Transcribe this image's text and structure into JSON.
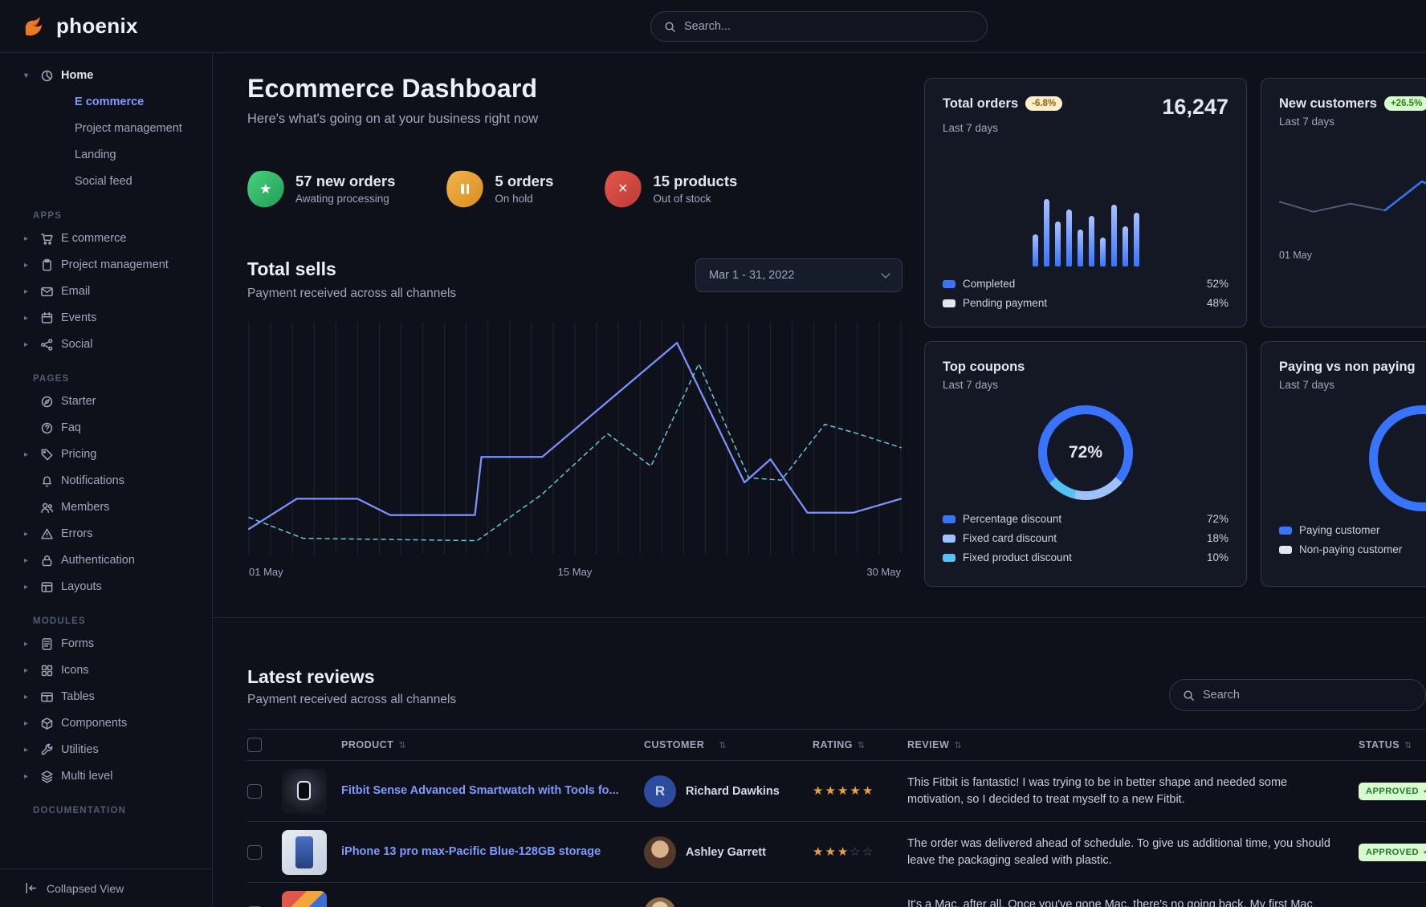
{
  "brand": {
    "name": "phoenix"
  },
  "icons": {
    "caret_down": "▾",
    "caret_right": "▸",
    "sort": "⇅",
    "star": "★",
    "star_filled": "★",
    "star_empty": "☆",
    "check": "✓",
    "close": "×"
  },
  "navbar": {
    "search_placeholder": "Search..."
  },
  "sidebar": {
    "home": {
      "label": "Home",
      "items": [
        {
          "label": "E commerce",
          "active": true
        },
        {
          "label": "Project management"
        },
        {
          "label": "Landing"
        },
        {
          "label": "Social feed"
        }
      ]
    },
    "sections": [
      {
        "title": "APPS",
        "items": [
          {
            "label": "E commerce"
          },
          {
            "label": "Project management"
          },
          {
            "label": "Email"
          },
          {
            "label": "Events"
          },
          {
            "label": "Social"
          }
        ]
      },
      {
        "title": "PAGES",
        "items": [
          {
            "label": "Starter"
          },
          {
            "label": "Faq"
          },
          {
            "label": "Pricing"
          },
          {
            "label": "Notifications"
          },
          {
            "label": "Members"
          },
          {
            "label": "Errors"
          },
          {
            "label": "Authentication"
          },
          {
            "label": "Layouts"
          }
        ]
      },
      {
        "title": "MODULES",
        "items": [
          {
            "label": "Forms"
          },
          {
            "label": "Icons"
          },
          {
            "label": "Tables"
          },
          {
            "label": "Components"
          },
          {
            "label": "Utilities"
          },
          {
            "label": "Multi level"
          }
        ]
      },
      {
        "title": "DOCUMENTATION",
        "items": []
      }
    ],
    "footer": {
      "label": "Collapsed View"
    }
  },
  "header": {
    "title": "Ecommerce Dashboard",
    "subtitle": "Here's what's going on at your business right now"
  },
  "stats": [
    {
      "value": "57 new orders",
      "caption": "Awating processing"
    },
    {
      "value": "5 orders",
      "caption": "On hold"
    },
    {
      "value": "15 products",
      "caption": "Out of stock"
    }
  ],
  "total_sells": {
    "title": "Total sells",
    "subtitle": "Payment received across all channels",
    "date_range": "Mar 1 - 31, 2022"
  },
  "cards": {
    "total_orders": {
      "title": "Total orders",
      "badge": "-6.8%",
      "period": "Last 7 days",
      "value": "16,247",
      "legend": [
        {
          "label": "Completed",
          "value": "52%",
          "color": "#3874ff"
        },
        {
          "label": "Pending payment",
          "value": "48%",
          "color": "#e3e6ed"
        }
      ]
    },
    "new_customers": {
      "title": "New customers",
      "badge": "+26.5%",
      "period": "Last 7 days",
      "x_label": "01 May"
    },
    "top_coupons": {
      "title": "Top coupons",
      "period": "Last 7 days",
      "center_value": "72%",
      "legend": [
        {
          "label": "Percentage discount",
          "value": "72%",
          "color": "#3874ff"
        },
        {
          "label": "Fixed card discount",
          "value": "18%",
          "color": "#9fc2ff"
        },
        {
          "label": "Fixed product discount",
          "value": "10%",
          "color": "#55c2f2"
        }
      ]
    },
    "paying": {
      "title": "Paying vs non paying",
      "period": "Last 7 days",
      "legend": [
        {
          "label": "Paying customer",
          "color": "#3874ff"
        },
        {
          "label": "Non-paying customer",
          "color": "#e3e6ed"
        }
      ]
    }
  },
  "reviews": {
    "title": "Latest reviews",
    "subtitle": "Payment received across all channels",
    "search_placeholder": "Search",
    "columns": [
      "PRODUCT",
      "CUSTOMER",
      "RATING",
      "REVIEW",
      "STATUS"
    ],
    "rows": [
      {
        "product": "Fitbit Sense Advanced Smartwatch with Tools fo...",
        "customer": "Richard Dawkins",
        "avatar_initial": "R",
        "rating": 5,
        "review": "This Fitbit is fantastic! I was trying to be in better shape and needed some motivation, so I decided to treat myself to a new Fitbit.",
        "status": "APPROVED"
      },
      {
        "product": "iPhone 13 pro max-Pacific Blue-128GB storage",
        "customer": "Ashley Garrett",
        "rating": 3,
        "review": "The order was delivered ahead of schedule. To give us additional time, you should leave the packaging sealed with plastic.",
        "status": "APPROVED"
      },
      {
        "product": "",
        "customer": "",
        "rating": 0,
        "review": "It's a Mac, after all. Once you've gone Mac, there's no going back. My first Mac lasted",
        "status": ""
      }
    ]
  },
  "chart_data": [
    {
      "id": "total-sells",
      "type": "line",
      "title": "Total sells",
      "x_ticks": [
        "01 May",
        "15 May",
        "30 May"
      ],
      "x_range": [
        0,
        30
      ],
      "y_range": [
        0,
        100
      ],
      "grid": "vertical",
      "series": [
        {
          "name": "sells",
          "style": "solid",
          "color": "#7b92ff",
          "points": [
            [
              0,
              11
            ],
            [
              2.2,
              24
            ],
            [
              5,
              24
            ],
            [
              6.5,
              17
            ],
            [
              10.4,
              17
            ],
            [
              10.7,
              42
            ],
            [
              13.5,
              42
            ],
            [
              19.7,
              91
            ],
            [
              22.8,
              31
            ],
            [
              24,
              41
            ],
            [
              25.7,
              18
            ],
            [
              27.8,
              18
            ],
            [
              30,
              24
            ]
          ]
        },
        {
          "name": "comparison",
          "style": "dashed",
          "color": "#63c8dd",
          "points": [
            [
              0,
              16
            ],
            [
              2.5,
              7
            ],
            [
              10.5,
              6
            ],
            [
              13.5,
              26
            ],
            [
              16.5,
              52
            ],
            [
              18.5,
              38
            ],
            [
              20.7,
              82
            ],
            [
              23,
              33
            ],
            [
              24.5,
              32
            ],
            [
              26.5,
              56
            ],
            [
              28,
              52
            ],
            [
              30,
              46
            ]
          ]
        }
      ]
    },
    {
      "id": "total-orders",
      "type": "bar",
      "values": [
        42,
        88,
        58,
        74,
        48,
        66,
        38,
        80,
        52,
        70
      ]
    },
    {
      "id": "new-customers",
      "type": "line",
      "series": [
        {
          "name": "customers",
          "style": "solid",
          "color": "#525b75",
          "points": [
            [
              0,
              45
            ],
            [
              12,
              30
            ],
            [
              25,
              42
            ],
            [
              37,
              32
            ],
            [
              50,
              75
            ],
            [
              62,
              50
            ],
            [
              75,
              58
            ],
            [
              87,
              55
            ],
            [
              100,
              63
            ]
          ]
        },
        {
          "name": "highlight",
          "style": "solid",
          "color": "#3874ff",
          "points": [
            [
              37,
              32
            ],
            [
              50,
              75
            ],
            [
              62,
              50
            ]
          ]
        }
      ]
    },
    {
      "id": "top-coupons",
      "type": "donut",
      "slices": [
        {
          "label": "Percentage discount",
          "value": 72,
          "color": "#3874ff"
        },
        {
          "label": "Fixed card discount",
          "value": 18,
          "color": "#9fc2ff"
        },
        {
          "label": "Fixed product discount",
          "value": 10,
          "color": "#55c2f2"
        }
      ]
    },
    {
      "id": "paying",
      "type": "donut",
      "slices": [
        {
          "label": "Paying customer",
          "value": 65,
          "color": "#3874ff"
        },
        {
          "label": "Non-paying customer",
          "value": 35,
          "color": "#e3e6ed"
        }
      ]
    }
  ]
}
